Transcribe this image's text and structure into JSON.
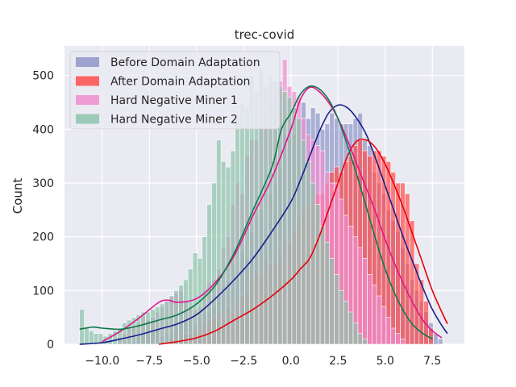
{
  "chart_data": {
    "type": "histogram",
    "title": "trec-covid",
    "xlabel": "",
    "ylabel": "Count",
    "xlim": [
      -12.0,
      9.2
    ],
    "ylim": [
      0,
      555
    ],
    "xticks": [
      -10.0,
      -7.5,
      -5.0,
      -2.5,
      0.0,
      2.5,
      5.0,
      7.5
    ],
    "xtick_labels": [
      "−10.0",
      "−7.5",
      "−5.0",
      "−2.5",
      "0.0",
      "2.5",
      "5.0",
      "7.5"
    ],
    "yticks": [
      0,
      100,
      200,
      300,
      400,
      500
    ],
    "ytick_labels": [
      "0",
      "100",
      "200",
      "300",
      "400",
      "500"
    ],
    "grid": true,
    "legend_position": "top-left",
    "bins": {
      "start": -11.2,
      "width": 0.25
    },
    "series": [
      {
        "name": "Before Domain Adaptation",
        "bar_color": "#8f95c8",
        "line_color": "#1a1f8c",
        "counts": [
          0,
          0,
          0,
          0,
          0,
          0,
          0,
          0,
          0,
          5,
          10,
          5,
          15,
          20,
          20,
          25,
          30,
          15,
          20,
          25,
          35,
          40,
          45,
          50,
          35,
          50,
          60,
          60,
          70,
          90,
          110,
          120,
          150,
          130,
          170,
          160,
          210,
          240,
          250,
          190,
          280,
          300,
          330,
          390,
          380,
          390,
          420,
          450,
          420,
          440,
          430,
          400,
          410,
          430,
          420,
          410,
          410,
          410,
          420,
          430,
          380,
          370,
          320,
          300,
          280,
          250,
          230,
          210,
          180,
          150,
          120,
          100,
          80,
          60,
          40,
          20,
          10
        ]
      },
      {
        "name": "After Domain Adaptation",
        "bar_color": "#ff4d4d",
        "line_color": "#e8000b",
        "counts": [
          0,
          0,
          0,
          0,
          0,
          0,
          0,
          0,
          0,
          0,
          0,
          0,
          0,
          0,
          0,
          0,
          0,
          5,
          5,
          10,
          10,
          15,
          20,
          20,
          25,
          30,
          40,
          45,
          50,
          60,
          50,
          70,
          60,
          80,
          90,
          100,
          120,
          140,
          130,
          160,
          150,
          150,
          170,
          200,
          190,
          210,
          230,
          250,
          260,
          270,
          280,
          280,
          300,
          320,
          330,
          320,
          340,
          350,
          370,
          380,
          360,
          350,
          360,
          360,
          350,
          340,
          320,
          300,
          300,
          280,
          230,
          150,
          120,
          80,
          30
        ]
      },
      {
        "name": "Hard Negative Miner 1",
        "bar_color": "#f08ed0",
        "line_color": "#e0158c",
        "counts": [
          0,
          0,
          0,
          0,
          0,
          0,
          0,
          0,
          10,
          20,
          30,
          35,
          40,
          50,
          45,
          50,
          60,
          70,
          80,
          90,
          95,
          100,
          80,
          70,
          65,
          70,
          100,
          115,
          120,
          140,
          180,
          200,
          260,
          300,
          280,
          350,
          380,
          380,
          410,
          430,
          450,
          470,
          490,
          530,
          480,
          470,
          460,
          420,
          390,
          380,
          370,
          360,
          320,
          300,
          300,
          270,
          240,
          220,
          200,
          180,
          160,
          130,
          110,
          90,
          70,
          50,
          30,
          20,
          10
        ]
      },
      {
        "name": "Hard Negative Miner 2",
        "bar_color": "#8fc3ad",
        "line_color": "#0b7a4a",
        "counts": [
          65,
          30,
          25,
          20,
          20,
          15,
          20,
          25,
          30,
          40,
          45,
          50,
          55,
          60,
          60,
          65,
          70,
          75,
          80,
          90,
          100,
          110,
          120,
          140,
          170,
          160,
          200,
          260,
          300,
          380,
          340,
          330,
          360,
          420,
          450,
          440,
          500,
          470,
          510,
          480,
          500,
          490,
          480,
          470,
          460,
          440,
          420,
          380,
          340,
          300,
          260,
          220,
          190,
          160,
          130,
          100,
          80,
          60,
          40,
          20,
          10
        ]
      }
    ],
    "kde": [
      {
        "name": "Before Domain Adaptation",
        "points": [
          [
            -11.2,
            0
          ],
          [
            -10.0,
            3
          ],
          [
            -9.0,
            10
          ],
          [
            -8.0,
            18
          ],
          [
            -7.0,
            28
          ],
          [
            -6.0,
            38
          ],
          [
            -5.0,
            55
          ],
          [
            -4.0,
            85
          ],
          [
            -3.0,
            120
          ],
          [
            -2.0,
            160
          ],
          [
            -1.0,
            210
          ],
          [
            0.0,
            265
          ],
          [
            0.5,
            305
          ],
          [
            1.0,
            350
          ],
          [
            1.5,
            395
          ],
          [
            2.0,
            430
          ],
          [
            2.5,
            445
          ],
          [
            3.0,
            440
          ],
          [
            3.5,
            420
          ],
          [
            4.0,
            390
          ],
          [
            4.5,
            345
          ],
          [
            5.0,
            295
          ],
          [
            5.5,
            245
          ],
          [
            6.0,
            195
          ],
          [
            6.5,
            150
          ],
          [
            7.0,
            105
          ],
          [
            7.5,
            65
          ],
          [
            8.0,
            35
          ],
          [
            8.3,
            20
          ]
        ]
      },
      {
        "name": "After Domain Adaptation",
        "points": [
          [
            -7.0,
            0
          ],
          [
            -6.0,
            5
          ],
          [
            -5.0,
            12
          ],
          [
            -4.0,
            25
          ],
          [
            -3.0,
            45
          ],
          [
            -2.0,
            65
          ],
          [
            -1.0,
            90
          ],
          [
            0.0,
            120
          ],
          [
            0.5,
            140
          ],
          [
            1.0,
            160
          ],
          [
            1.5,
            200
          ],
          [
            2.0,
            250
          ],
          [
            2.5,
            300
          ],
          [
            3.0,
            350
          ],
          [
            3.5,
            378
          ],
          [
            4.0,
            380
          ],
          [
            4.5,
            365
          ],
          [
            5.0,
            335
          ],
          [
            5.5,
            295
          ],
          [
            6.0,
            250
          ],
          [
            6.5,
            200
          ],
          [
            7.0,
            150
          ],
          [
            7.5,
            100
          ],
          [
            8.0,
            60
          ],
          [
            8.3,
            38
          ]
        ]
      },
      {
        "name": "Hard Negative Miner 1",
        "points": [
          [
            -10.0,
            5
          ],
          [
            -9.0,
            25
          ],
          [
            -8.0,
            50
          ],
          [
            -7.0,
            78
          ],
          [
            -6.5,
            82
          ],
          [
            -6.0,
            78
          ],
          [
            -5.0,
            85
          ],
          [
            -4.0,
            115
          ],
          [
            -3.0,
            165
          ],
          [
            -2.0,
            240
          ],
          [
            -1.0,
            310
          ],
          [
            0.0,
            400
          ],
          [
            0.5,
            455
          ],
          [
            1.0,
            478
          ],
          [
            1.5,
            470
          ],
          [
            2.0,
            450
          ],
          [
            2.5,
            420
          ],
          [
            3.0,
            380
          ],
          [
            3.5,
            335
          ],
          [
            4.0,
            290
          ],
          [
            4.5,
            245
          ],
          [
            5.0,
            195
          ],
          [
            5.5,
            150
          ],
          [
            6.0,
            110
          ],
          [
            6.5,
            75
          ],
          [
            7.0,
            45
          ],
          [
            7.5,
            25
          ],
          [
            8.0,
            12
          ]
        ]
      },
      {
        "name": "Hard Negative Miner 2",
        "points": [
          [
            -11.2,
            28
          ],
          [
            -10.5,
            32
          ],
          [
            -10.0,
            30
          ],
          [
            -9.0,
            28
          ],
          [
            -8.0,
            35
          ],
          [
            -7.0,
            45
          ],
          [
            -6.0,
            55
          ],
          [
            -5.0,
            75
          ],
          [
            -4.0,
            110
          ],
          [
            -3.0,
            170
          ],
          [
            -2.0,
            250
          ],
          [
            -1.0,
            330
          ],
          [
            -0.5,
            400
          ],
          [
            0.0,
            430
          ],
          [
            0.5,
            465
          ],
          [
            1.0,
            480
          ],
          [
            1.5,
            475
          ],
          [
            2.0,
            455
          ],
          [
            2.5,
            420
          ],
          [
            3.0,
            370
          ],
          [
            3.5,
            315
          ],
          [
            4.0,
            255
          ],
          [
            4.5,
            195
          ],
          [
            5.0,
            140
          ],
          [
            5.5,
            95
          ],
          [
            6.0,
            60
          ],
          [
            6.5,
            35
          ],
          [
            7.0,
            20
          ],
          [
            7.5,
            10
          ]
        ]
      }
    ],
    "colors": {
      "background": "#eaeaf2",
      "grid": "#ffffff",
      "text": "#262626"
    }
  }
}
